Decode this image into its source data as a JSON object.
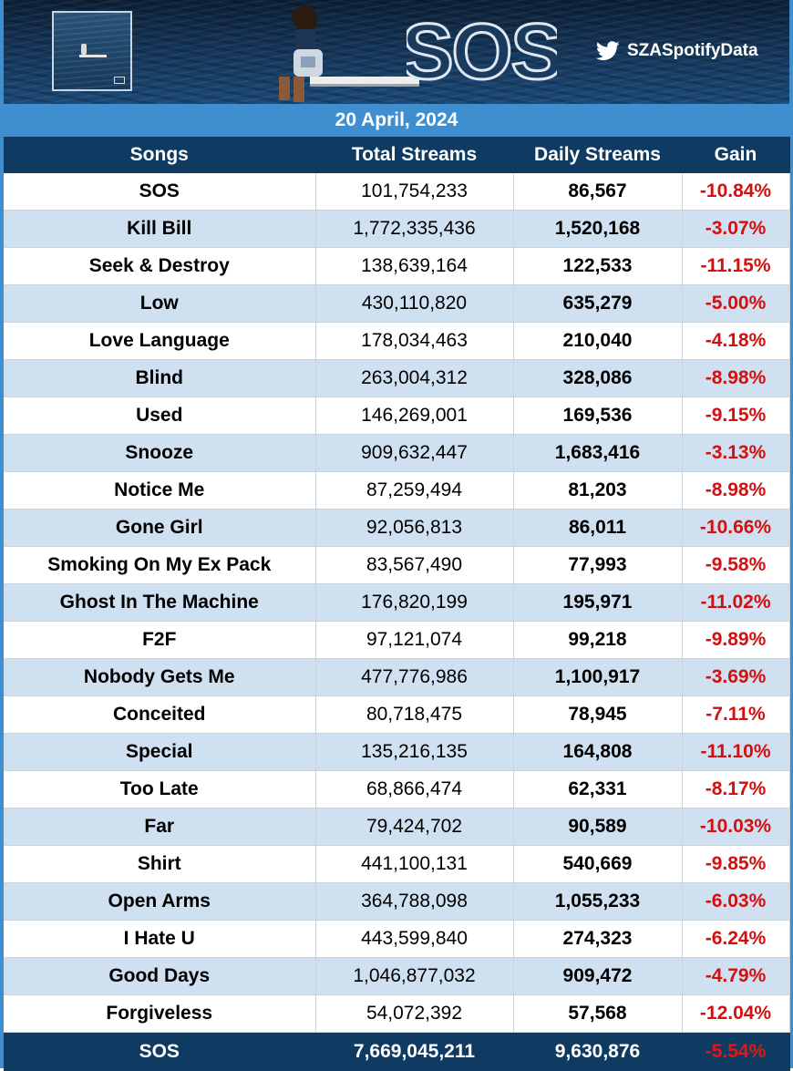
{
  "banner": {
    "logo_text": "SOS",
    "handle": "SZASpotifyData",
    "handle_icon": "twitter-bird-icon"
  },
  "date": "20 April, 2024",
  "table": {
    "headers": [
      "Songs",
      "Total Streams",
      "Daily Streams",
      "Gain"
    ],
    "rows": [
      {
        "song": "SOS",
        "total": "101,754,233",
        "daily": "86,567",
        "gain": "-10.84%"
      },
      {
        "song": "Kill Bill",
        "total": "1,772,335,436",
        "daily": "1,520,168",
        "gain": "-3.07%"
      },
      {
        "song": "Seek & Destroy",
        "total": "138,639,164",
        "daily": "122,533",
        "gain": "-11.15%"
      },
      {
        "song": "Low",
        "total": "430,110,820",
        "daily": "635,279",
        "gain": "-5.00%"
      },
      {
        "song": "Love Language",
        "total": "178,034,463",
        "daily": "210,040",
        "gain": "-4.18%"
      },
      {
        "song": "Blind",
        "total": "263,004,312",
        "daily": "328,086",
        "gain": "-8.98%"
      },
      {
        "song": "Used",
        "total": "146,269,001",
        "daily": "169,536",
        "gain": "-9.15%"
      },
      {
        "song": "Snooze",
        "total": "909,632,447",
        "daily": "1,683,416",
        "gain": "-3.13%"
      },
      {
        "song": "Notice Me",
        "total": "87,259,494",
        "daily": "81,203",
        "gain": "-8.98%"
      },
      {
        "song": "Gone Girl",
        "total": "92,056,813",
        "daily": "86,011",
        "gain": "-10.66%"
      },
      {
        "song": "Smoking On My Ex Pack",
        "total": "83,567,490",
        "daily": "77,993",
        "gain": "-9.58%"
      },
      {
        "song": "Ghost In The Machine",
        "total": "176,820,199",
        "daily": "195,971",
        "gain": "-11.02%"
      },
      {
        "song": "F2F",
        "total": "97,121,074",
        "daily": "99,218",
        "gain": "-9.89%"
      },
      {
        "song": "Nobody Gets Me",
        "total": "477,776,986",
        "daily": "1,100,917",
        "gain": "-3.69%"
      },
      {
        "song": "Conceited",
        "total": "80,718,475",
        "daily": "78,945",
        "gain": "-7.11%"
      },
      {
        "song": "Special",
        "total": "135,216,135",
        "daily": "164,808",
        "gain": "-11.10%"
      },
      {
        "song": "Too Late",
        "total": "68,866,474",
        "daily": "62,331",
        "gain": "-8.17%"
      },
      {
        "song": "Far",
        "total": "79,424,702",
        "daily": "90,589",
        "gain": "-10.03%"
      },
      {
        "song": "Shirt",
        "total": "441,100,131",
        "daily": "540,669",
        "gain": "-9.85%"
      },
      {
        "song": "Open Arms",
        "total": "364,788,098",
        "daily": "1,055,233",
        "gain": "-6.03%"
      },
      {
        "song": "I Hate U",
        "total": "443,599,840",
        "daily": "274,323",
        "gain": "-6.24%"
      },
      {
        "song": "Good Days",
        "total": "1,046,877,032",
        "daily": "909,472",
        "gain": "-4.79%"
      },
      {
        "song": "Forgiveless",
        "total": "54,072,392",
        "daily": "57,568",
        "gain": "-12.04%"
      }
    ],
    "total_row": {
      "song": "SOS",
      "total": "7,669,045,211",
      "daily": "9,630,876",
      "gain": "-5.54%"
    }
  },
  "colors": {
    "header_navy": "#0f3b63",
    "date_bar_blue": "#3f8ed0",
    "stripe_blue": "#cfe0f1",
    "negative_red": "#d40f0f"
  }
}
